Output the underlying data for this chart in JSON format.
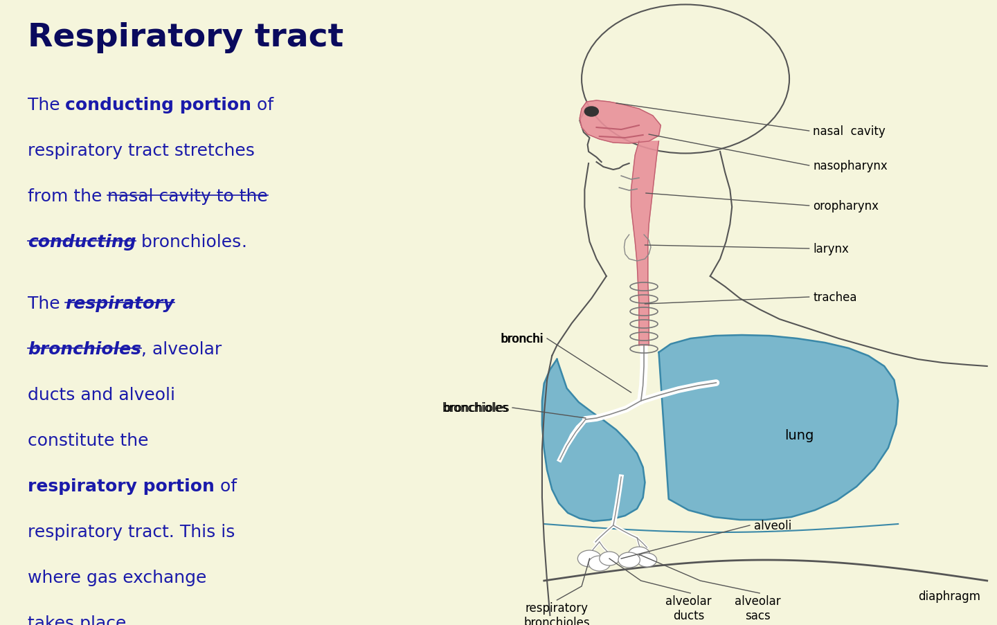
{
  "bg_color": "#F5F5DC",
  "title": "Respiratory tract",
  "title_color": "#0a0a5e",
  "title_fontsize": 34,
  "text_color": "#1a1aaa",
  "body_fontsize": 18,
  "label_fontsize": 12,
  "pink_color": "#E8909A",
  "pink_dark": "#c06070",
  "blue_color": "#5BA8C8",
  "blue_dark": "#3a88a8",
  "outline_color": "#555555",
  "label_line_color": "#555555",
  "p1_lines": [
    [
      [
        "The ",
        false,
        false
      ],
      [
        "conducting portion",
        true,
        false
      ],
      [
        " of",
        false,
        false
      ]
    ],
    [
      [
        "respiratory tract stretches",
        false,
        false
      ]
    ],
    [
      [
        "from the ",
        false,
        false
      ],
      [
        "nasal cavity to the",
        false,
        true
      ]
    ],
    [
      [
        "conducting",
        true,
        true
      ],
      [
        " bronchioles",
        false,
        false
      ],
      [
        ".",
        false,
        false
      ]
    ]
  ],
  "p2_lines": [
    [
      [
        "The ",
        false,
        false
      ],
      [
        "respiratory",
        true,
        true
      ]
    ],
    [
      [
        "bronchioles",
        true,
        true
      ],
      [
        ", alveolar",
        false,
        false
      ]
    ],
    [
      [
        "ducts and alveoli",
        false,
        false
      ]
    ],
    [
      [
        "constitute the",
        false,
        false
      ]
    ],
    [
      [
        "respiratory portion",
        true,
        false
      ],
      [
        " of",
        false,
        false
      ]
    ],
    [
      [
        "respiratory tract. This is",
        false,
        false
      ]
    ],
    [
      [
        "where gas exchange",
        false,
        false
      ]
    ],
    [
      [
        "takes place.",
        false,
        false
      ]
    ]
  ]
}
